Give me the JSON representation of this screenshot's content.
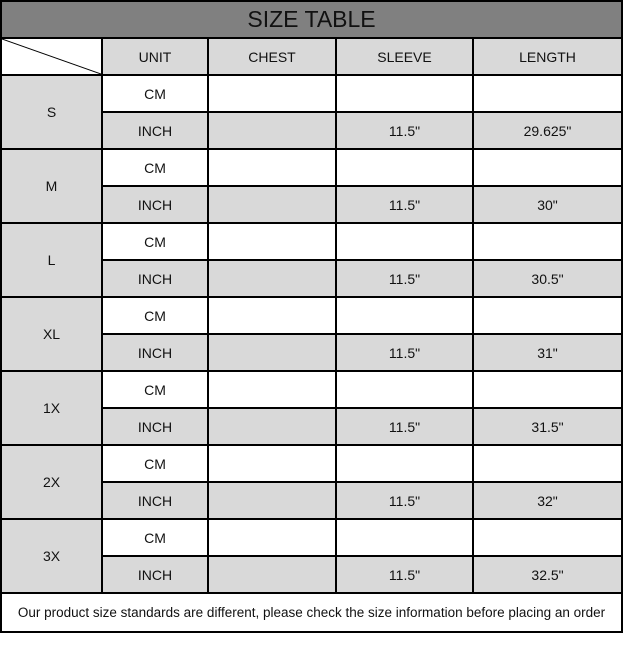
{
  "title": "SIZE TABLE",
  "headers": [
    "UNIT",
    "CHEST",
    "SLEEVE",
    "LENGTH"
  ],
  "sizes": [
    {
      "size": "S",
      "rows": [
        [
          "CM",
          "",
          "",
          ""
        ],
        [
          "INCH",
          "",
          "11.5\"",
          "29.625\""
        ]
      ]
    },
    {
      "size": "M",
      "rows": [
        [
          "CM",
          "",
          "",
          ""
        ],
        [
          "INCH",
          "",
          "11.5\"",
          "30\""
        ]
      ]
    },
    {
      "size": "L",
      "rows": [
        [
          "CM",
          "",
          "",
          ""
        ],
        [
          "INCH",
          "",
          "11.5\"",
          "30.5\""
        ]
      ]
    },
    {
      "size": "XL",
      "rows": [
        [
          "CM",
          "",
          "",
          ""
        ],
        [
          "INCH",
          "",
          "11.5\"",
          "31\""
        ]
      ]
    },
    {
      "size": "1X",
      "rows": [
        [
          "CM",
          "",
          "",
          ""
        ],
        [
          "INCH",
          "",
          "11.5\"",
          "31.5\""
        ]
      ]
    },
    {
      "size": "2X",
      "rows": [
        [
          "CM",
          "",
          "",
          ""
        ],
        [
          "INCH",
          "",
          "11.5\"",
          "32\""
        ]
      ]
    },
    {
      "size": "3X",
      "rows": [
        [
          "CM",
          "",
          "",
          ""
        ],
        [
          "INCH",
          "",
          "11.5\"",
          "32.5\""
        ]
      ]
    }
  ],
  "footer": "Our product size standards are different, please check the size information before placing an order",
  "colors": {
    "title_bg": "#808080",
    "shaded_bg": "#d9d9d9"
  }
}
